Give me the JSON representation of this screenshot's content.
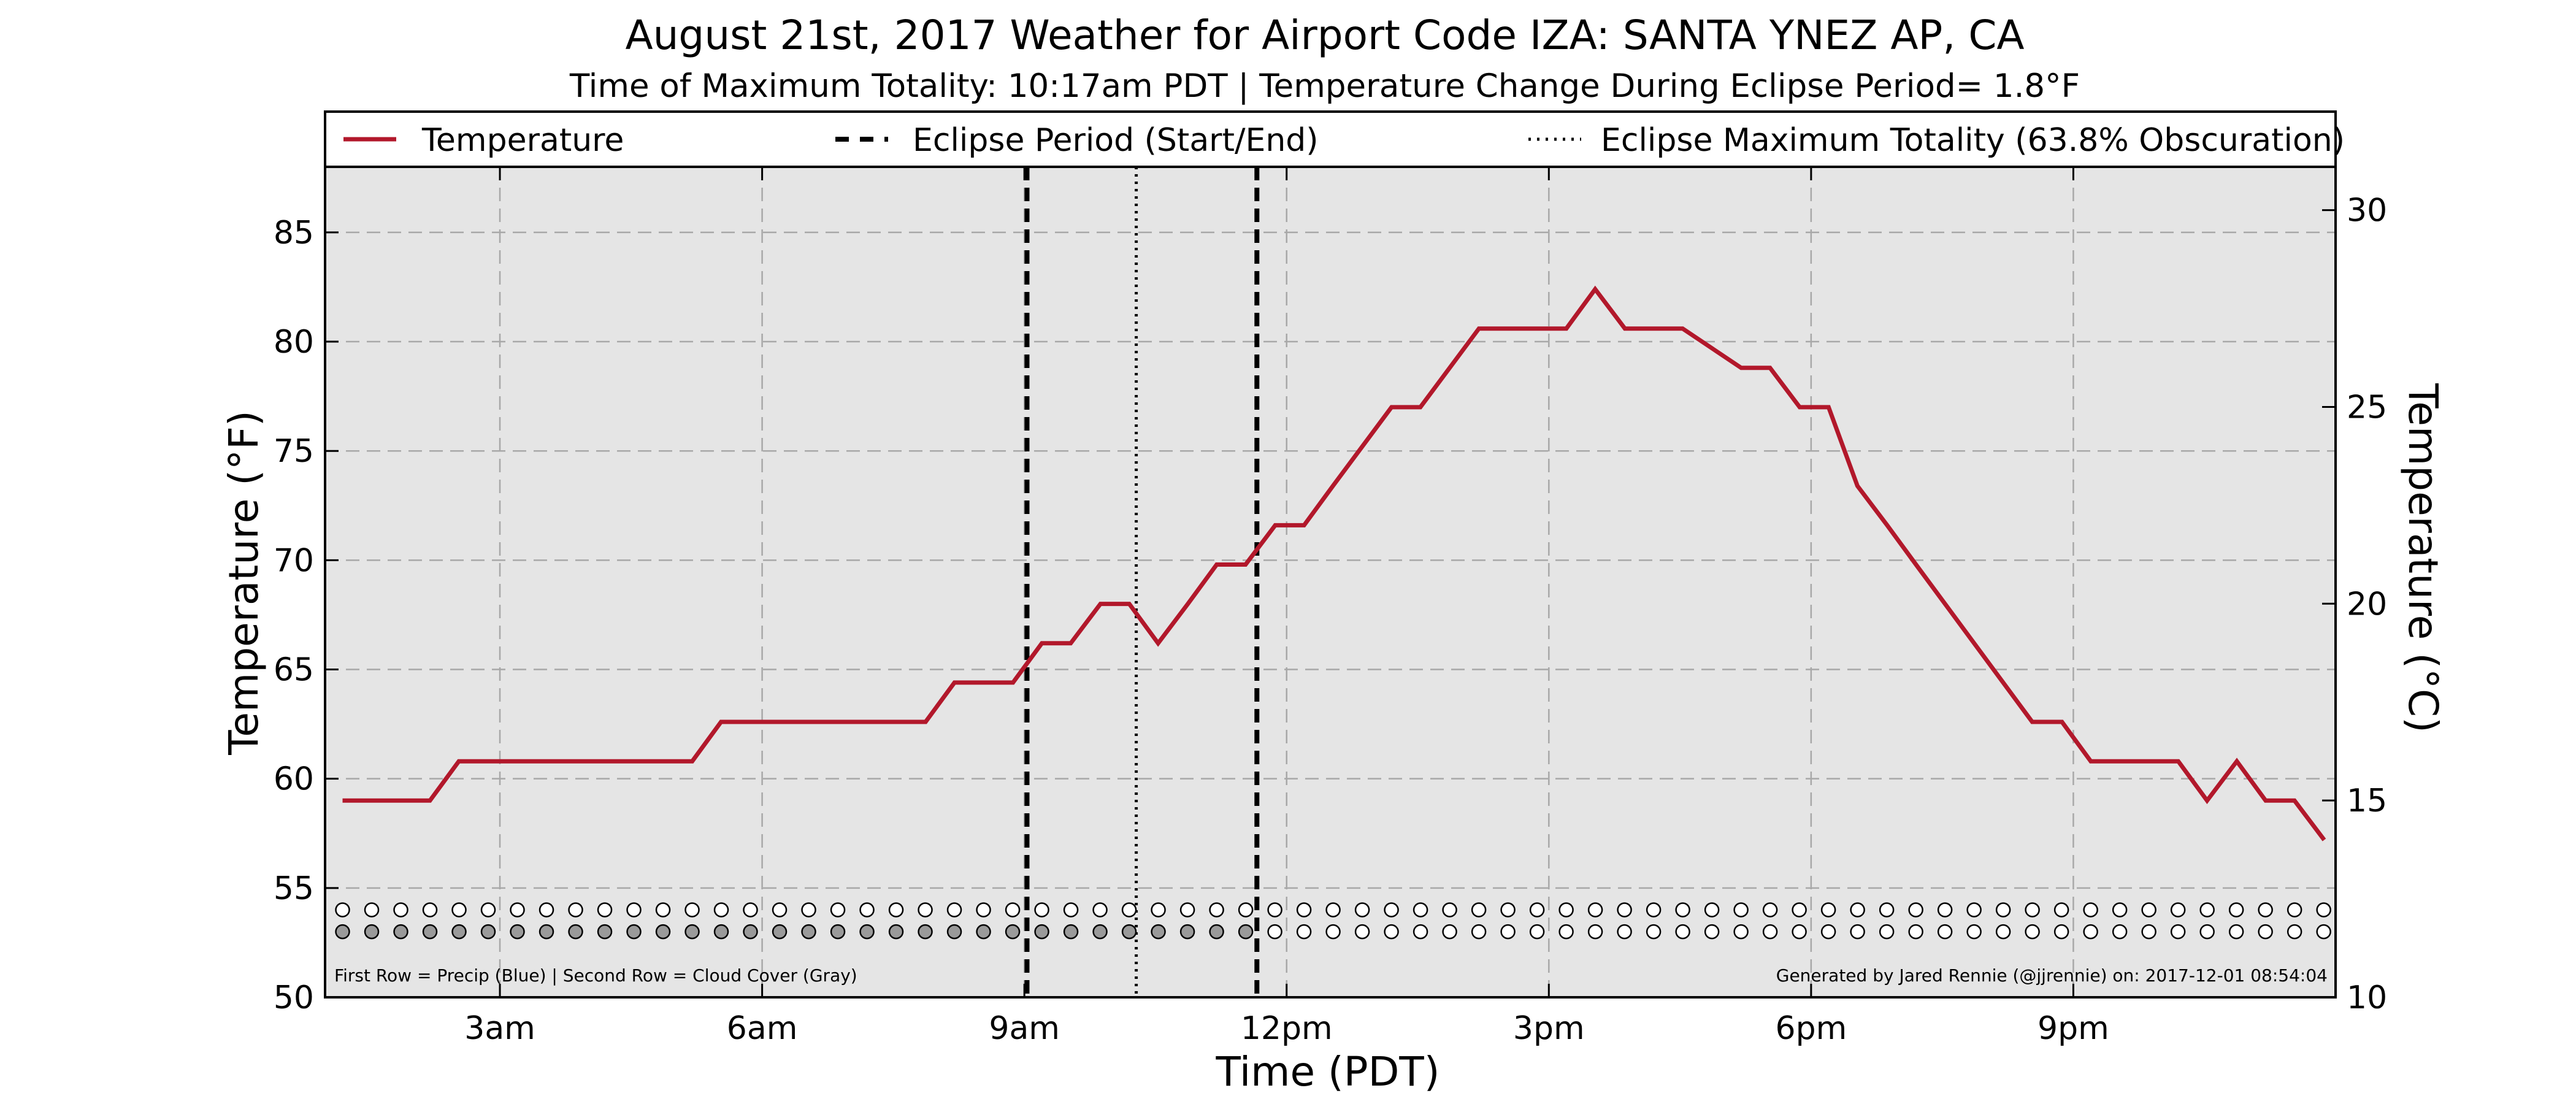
{
  "chart_data": {
    "type": "line",
    "title": "August 21st, 2017 Weather for Airport Code IZA: SANTA YNEZ AP, CA",
    "subtitle": "Time of Maximum Totality: 10:17am PDT | Temperature Change During Eclipse Period= 1.8°F",
    "xlabel": "Time (PDT)",
    "ylabel": "Temperature (°F)",
    "ylabel_right": "Temperature (°C)",
    "x_unit": "hours after midnight (PDT)",
    "xlim": [
      1.0,
      24.0
    ],
    "ylim": [
      50,
      88
    ],
    "ylim_right": [
      10,
      31.1
    ],
    "x_ticks": [
      {
        "value": 3,
        "label": "3am"
      },
      {
        "value": 6,
        "label": "6am"
      },
      {
        "value": 9,
        "label": "9am"
      },
      {
        "value": 12,
        "label": "12pm"
      },
      {
        "value": 15,
        "label": "3pm"
      },
      {
        "value": 18,
        "label": "6pm"
      },
      {
        "value": 21,
        "label": "9pm"
      }
    ],
    "y_ticks": [
      50,
      55,
      60,
      65,
      70,
      75,
      80,
      85
    ],
    "y_ticks_right": [
      10,
      15,
      20,
      25,
      30
    ],
    "grid": true,
    "legend_position": "top (above plot)",
    "legend": [
      {
        "label": "Temperature",
        "style": "solid",
        "color": "#b2182b"
      },
      {
        "label": "Eclipse Period (Start/End)",
        "style": "dashed",
        "color": "#000000"
      },
      {
        "label": "Eclipse Maximum Totality (63.8% Obscuration)",
        "style": "dotted",
        "color": "#000000"
      }
    ],
    "series": [
      {
        "name": "Temperature",
        "color": "#b2182b",
        "x": [
          1.2,
          2.2,
          2.53,
          5.2,
          5.53,
          7.87,
          8.2,
          8.87,
          9.2,
          9.53,
          9.87,
          10.2,
          10.53,
          10.87,
          11.2,
          11.53,
          11.87,
          12.2,
          12.53,
          13.2,
          13.53,
          14.2,
          14.53,
          15.2,
          15.53,
          15.87,
          16.2,
          16.53,
          17.2,
          17.53,
          17.87,
          18.2,
          18.53,
          18.87,
          19.2,
          20.53,
          20.87,
          21.2,
          21.53,
          22.2,
          22.53,
          22.87,
          23.2,
          23.53,
          23.87
        ],
        "y": [
          59,
          59,
          60.8,
          60.8,
          62.6,
          62.6,
          64.4,
          64.4,
          66.2,
          66.2,
          68,
          68,
          66.2,
          68,
          69.8,
          69.8,
          71.6,
          71.6,
          73.4,
          77,
          77,
          80.6,
          80.6,
          80.6,
          82.4,
          80.6,
          80.6,
          80.6,
          78.8,
          78.8,
          77,
          77,
          73.4,
          71.6,
          69.8,
          62.6,
          62.6,
          60.8,
          60.8,
          60.8,
          59,
          60.8,
          59,
          59,
          57.2
        ]
      }
    ],
    "eclipse": {
      "start": 9.03,
      "max_totality": 10.28,
      "end": 11.66
    },
    "precip_row": {
      "label": "First Row = Precip (Blue)",
      "x_start": 1.2,
      "x_step": 0.3333,
      "count": 69,
      "y": 54,
      "color": "#ffffff"
    },
    "cloud_row": {
      "label": "Second Row = Cloud Cover (Gray)",
      "x_start": 1.2,
      "x_step": 0.3333,
      "count": 69,
      "y": 53,
      "gray_until": 11.6,
      "gray_color": "#9a9a9a",
      "clear_color": "#ffffff"
    },
    "footnote_left": "First Row = Precip (Blue) | Second Row = Cloud Cover (Gray)",
    "footnote_right": "Generated by Jared Rennie (@jjrennie) on: 2017-12-01 08:54:04"
  }
}
